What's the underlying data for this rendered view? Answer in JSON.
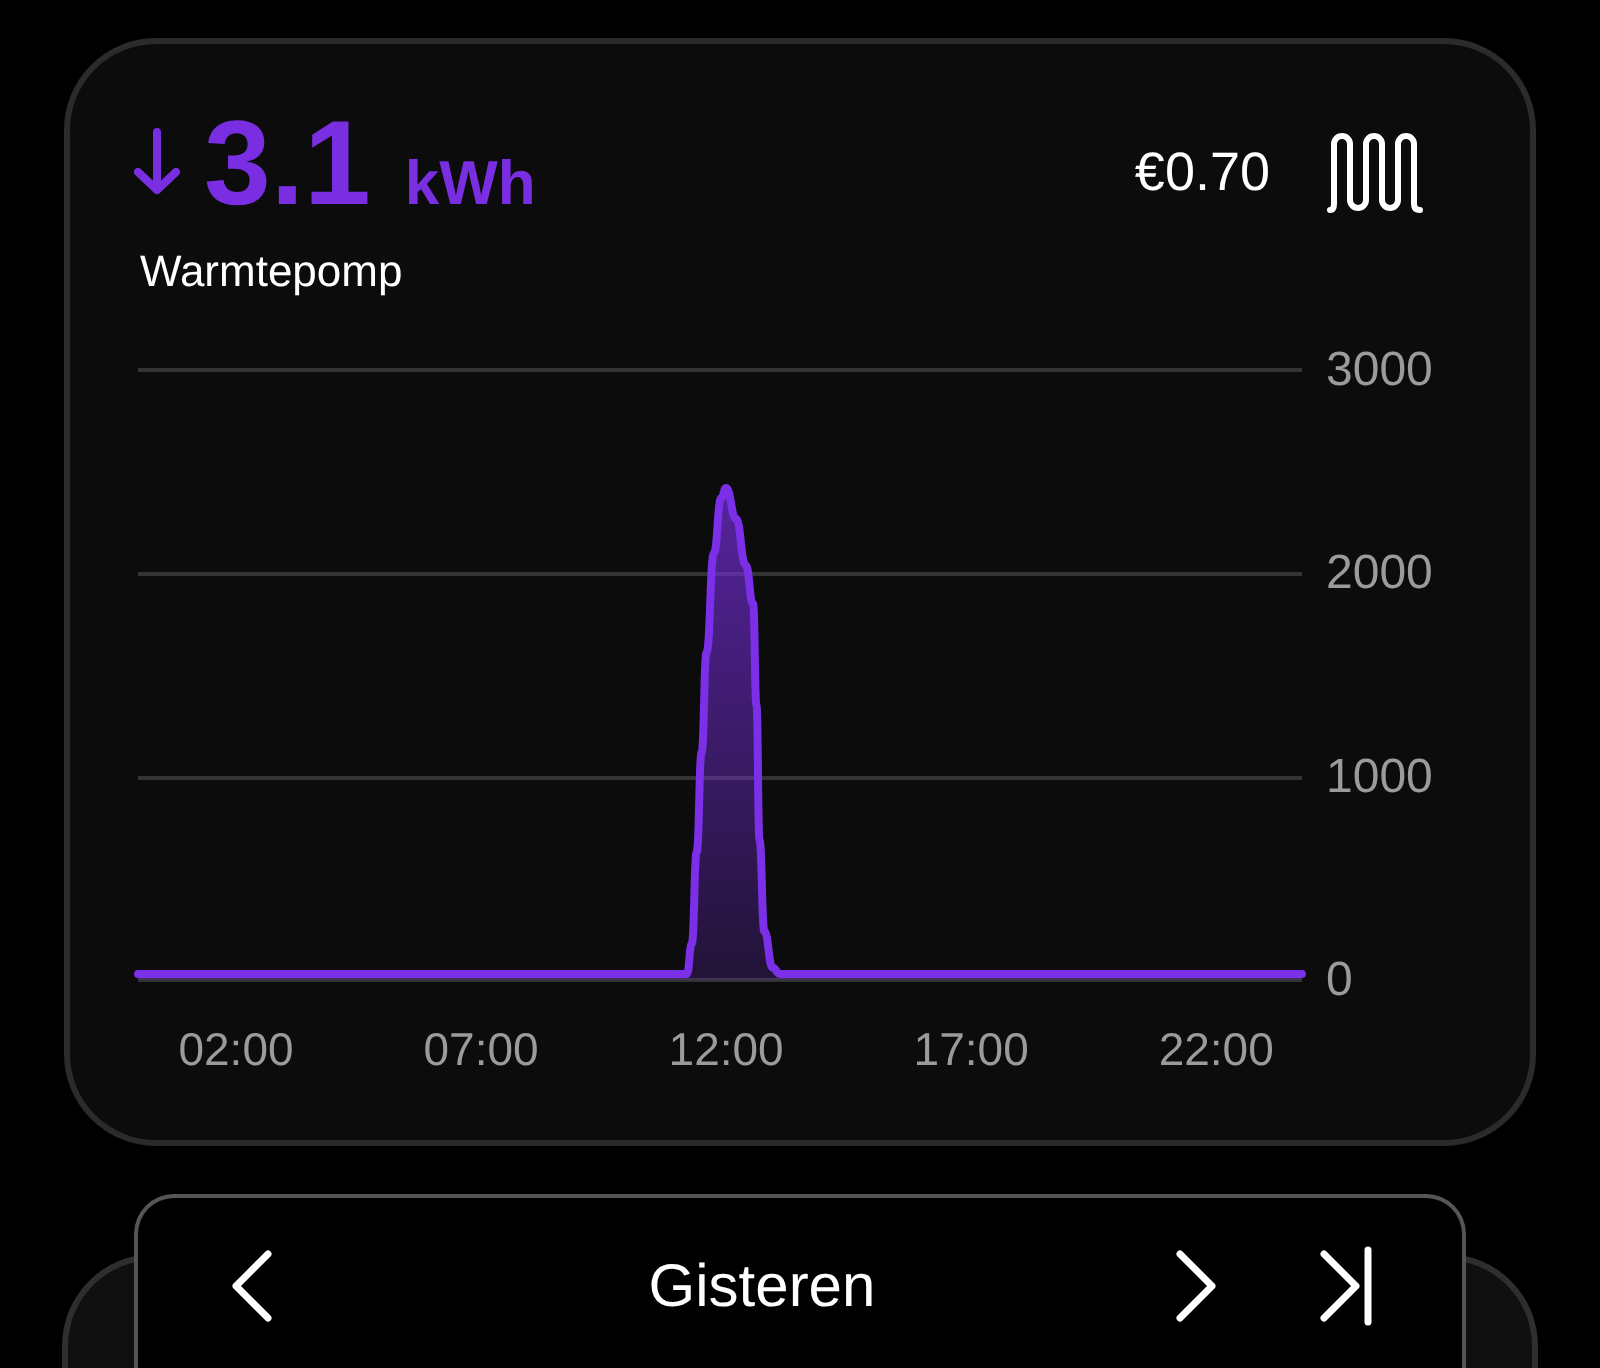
{
  "chart_data": {
    "type": "area",
    "title": "3.1 kWh",
    "subtitle": "Warmtepomp",
    "annotations": [
      "€0.70",
      "Gisteren"
    ],
    "x": [
      0,
      1,
      2,
      3,
      4,
      5,
      6,
      7,
      8,
      9,
      10,
      11,
      11.2,
      11.3,
      11.4,
      11.5,
      11.6,
      11.75,
      11.9,
      12,
      12.2,
      12.4,
      12.55,
      12.62,
      12.68,
      12.78,
      12.95,
      13.1,
      14,
      15,
      16,
      17,
      18,
      19,
      20,
      21,
      22,
      23,
      23.75
    ],
    "values": [
      30,
      30,
      30,
      30,
      30,
      30,
      30,
      30,
      30,
      30,
      30,
      30,
      30,
      180,
      630,
      1120,
      1610,
      2100,
      2370,
      2420,
      2270,
      2040,
      1850,
      1350,
      690,
      240,
      60,
      30,
      30,
      30,
      30,
      30,
      30,
      30,
      30,
      30,
      30,
      30,
      30
    ],
    "color": "#7b2fe6",
    "xlim": [
      0,
      23.75
    ],
    "xticks": [
      {
        "value": 2,
        "label": "02:00"
      },
      {
        "value": 7,
        "label": "07:00"
      },
      {
        "value": 12,
        "label": "12:00"
      },
      {
        "value": 17,
        "label": "17:00"
      },
      {
        "value": 22,
        "label": "22:00"
      }
    ],
    "ylim": [
      0,
      3000
    ],
    "yticks": [
      0,
      1000,
      2000,
      3000
    ],
    "grid": "y",
    "marker": "none",
    "line_style": "solid"
  }
}
